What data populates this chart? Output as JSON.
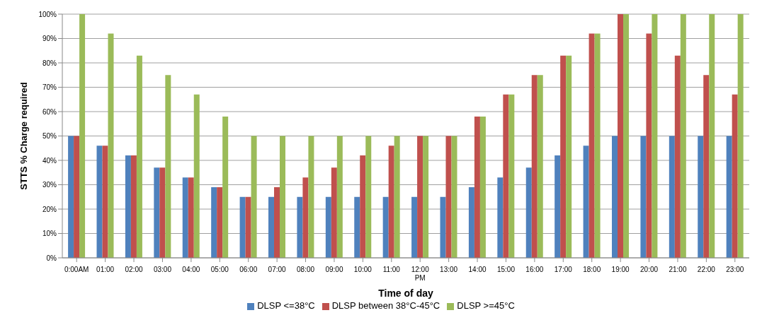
{
  "chart_data": {
    "type": "bar",
    "xlabel": "Time of day",
    "ylabel": "STTS % Charge required",
    "categories": [
      "0:00AM",
      "01:00",
      "02:00",
      "03:00",
      "04:00",
      "05:00",
      "06:00",
      "07:00",
      "08:00",
      "09:00",
      "10:00",
      "11:00",
      "12:00 PM",
      "13:00",
      "14:00",
      "15:00",
      "16:00",
      "17:00",
      "18:00",
      "19:00",
      "20:00",
      "21:00",
      "22:00",
      "23:00"
    ],
    "series": [
      {
        "name": "DLSP <=38°C",
        "color": "#4f81bd",
        "values": [
          50,
          46,
          42,
          37,
          33,
          29,
          25,
          25,
          25,
          25,
          25,
          25,
          25,
          25,
          29,
          33,
          37,
          42,
          46,
          50,
          50,
          50,
          50,
          50
        ]
      },
      {
        "name": "DLSP between 38°C-45°C",
        "color": "#c0504d",
        "values": [
          50,
          46,
          42,
          37,
          33,
          29,
          25,
          29,
          33,
          37,
          42,
          46,
          50,
          50,
          58,
          67,
          75,
          83,
          92,
          100,
          92,
          83,
          75,
          67
        ]
      },
      {
        "name": "DLSP >=45°C",
        "color": "#9bbb59",
        "values": [
          100,
          92,
          83,
          75,
          67,
          58,
          50,
          50,
          50,
          50,
          50,
          50,
          50,
          50,
          58,
          67,
          75,
          83,
          92,
          100,
          100,
          100,
          100,
          100
        ]
      }
    ],
    "ylim": [
      0,
      100
    ],
    "yticks": [
      {
        "value": 0,
        "label": "0%"
      },
      {
        "value": 10,
        "label": "10%"
      },
      {
        "value": 20,
        "label": "20%"
      },
      {
        "value": 30,
        "label": "30%"
      },
      {
        "value": 40,
        "label": "40%"
      },
      {
        "value": 50,
        "label": "50%"
      },
      {
        "value": 60,
        "label": "60%"
      },
      {
        "value": 70,
        "label": "70%"
      },
      {
        "value": 80,
        "label": "80%"
      },
      {
        "value": 90,
        "label": "90%"
      },
      {
        "value": 100,
        "label": "100%"
      }
    ],
    "grid": "y",
    "legend": "bottom"
  }
}
